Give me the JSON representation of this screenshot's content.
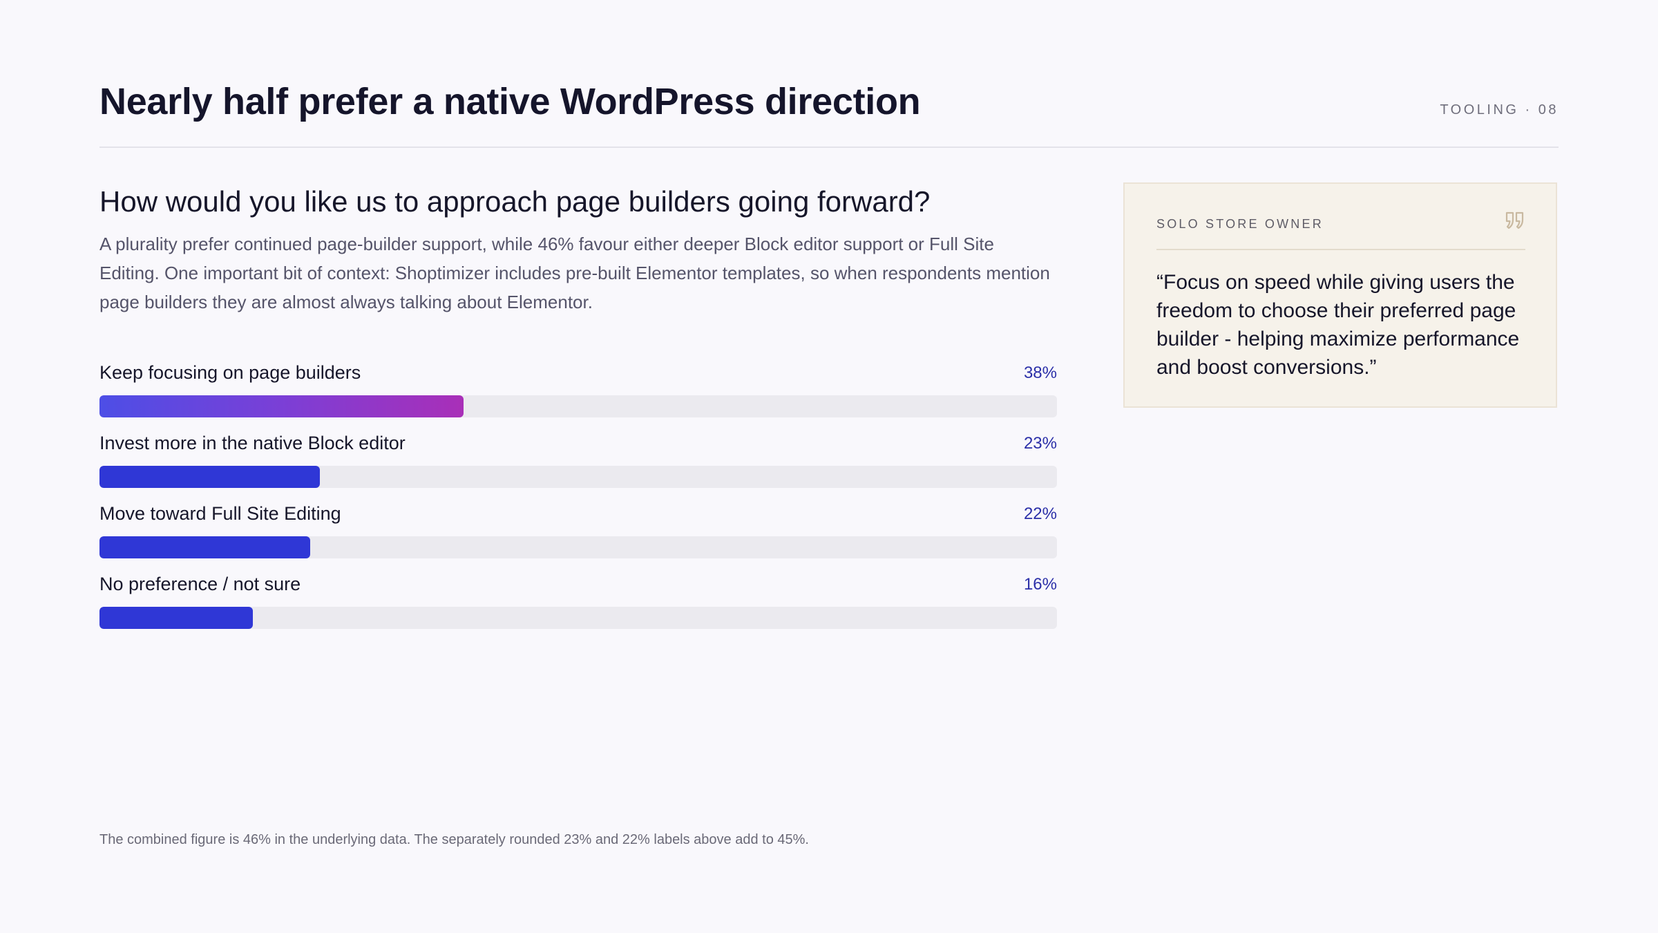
{
  "header": {
    "title": "Nearly half prefer a native WordPress direction",
    "section_tag": "TOOLING · 08"
  },
  "main": {
    "question": "How would you like us to approach page builders going forward?",
    "description": "A plurality prefer continued page-builder support, while 46% favour either deeper Block editor support or Full Site Editing. One important bit of context: Shoptimizer includes pre-built Elementor templates, so when respondents mention page builders they are almost always talking about Elementor."
  },
  "chart_data": {
    "type": "bar",
    "orientation": "horizontal",
    "categories": [
      "Keep focusing on page builders",
      "Invest more in the native Block editor",
      "Move toward Full Site Editing",
      "No preference / not sure"
    ],
    "values": [
      38,
      23,
      22,
      16
    ],
    "value_labels": [
      "38%",
      "23%",
      "22%",
      "16%"
    ],
    "xlim": [
      0,
      100
    ],
    "title": "",
    "xlabel": "",
    "ylabel": "",
    "grid": false,
    "colors": {
      "highlight_start": "#4d4ee6",
      "highlight_end": "#a92fb8",
      "bar": "#2f37d6",
      "track": "#ebeaef",
      "value_text": "#2b2fa8"
    }
  },
  "quote": {
    "role": "SOLO STORE OWNER",
    "icon": "quote-mark-icon",
    "text": "“Focus on speed while giving users the freedom to choose their preferred page builder - helping maximize performance and boost conversions.”"
  },
  "footnote": "The combined figure is 46% in the underlying data. The separately rounded 23% and 22% labels above add to 45%."
}
